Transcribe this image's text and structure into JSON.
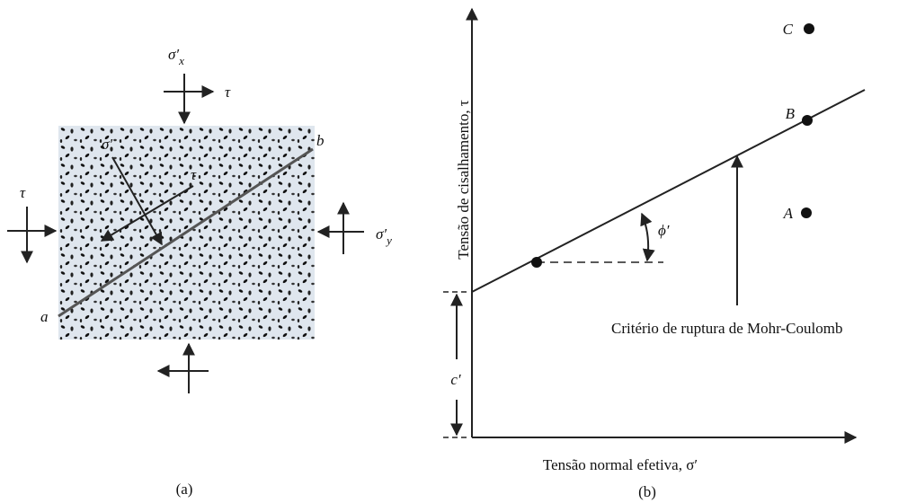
{
  "panel_a": {
    "caption": "(a)",
    "sigma_x": {
      "symbol": "σ′",
      "subscript": "x"
    },
    "tau_top": "τ",
    "tau_left": "τ",
    "sigma_y": {
      "symbol": "σ′",
      "subscript": "y"
    },
    "sigma_plane": "σ′",
    "tau_plane": "τ",
    "point_a": "a",
    "point_b": "b"
  },
  "panel_b": {
    "caption": "(b)",
    "y_axis_label": "Tensão de cisalhamento, τ",
    "x_axis_label": "Tensão normal efetiva, σ′",
    "point_c": "C",
    "point_b": "B",
    "point_a": "A",
    "angle_label": "ϕ′",
    "cohesion_label": "c′",
    "criterion_label": "Critério de ruptura de Mohr-Coulomb"
  }
}
